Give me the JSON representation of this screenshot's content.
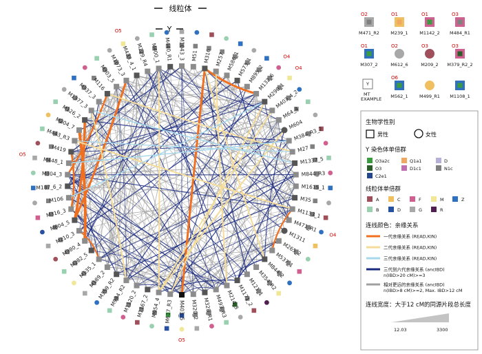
{
  "titles": {
    "mito": "线粒体",
    "y": "Y"
  },
  "colors": {
    "Y": {
      "O3a2c": "#3a9c3f",
      "Q1a1": "#f0a860",
      "D": "#b8b0d8",
      "O3": "#2a5d2a",
      "D1c1": "#c070b0",
      "N1c": "#808080",
      "C2e1": "#24468c"
    },
    "mt": {
      "A": "#a0505a",
      "C": "#f0c060",
      "F": "#d06090",
      "M": "#f0e898",
      "Z": "#3070c0",
      "B": "#98d0b0",
      "D": "#2850a0",
      "G": "#a8a8a8",
      "R": "#502050"
    },
    "edges": {
      "first": "#f07020",
      "second": "#f5dc98",
      "third": "#a8d8ec",
      "far": "#1a2a80",
      "other": "#a0a0a0"
    }
  },
  "nodes": [
    {
      "label": "M403_5",
      "y": "C2e1",
      "mt": "M",
      "sex": "M",
      "ann": "O5"
    },
    {
      "label": "M617_R3",
      "y": "O3a2c",
      "mt": "D",
      "sex": "M"
    },
    {
      "label": "M954_4",
      "y": "N1c",
      "mt": "B",
      "sex": "M"
    },
    {
      "label": "M1167_2",
      "y": "N1c",
      "mt": "A",
      "sex": "M"
    },
    {
      "label": "M1120_2",
      "y": "N1c",
      "mt": "F",
      "sex": "M"
    },
    {
      "label": "M984_R2",
      "y": "N1c",
      "mt": "B",
      "sex": "M"
    },
    {
      "label": "M359_R2",
      "y": "N1c",
      "mt": "Z",
      "sex": "M"
    },
    {
      "label": "M189_2",
      "y": "N1c",
      "mt": "G",
      "sex": "M"
    },
    {
      "label": "M135_1",
      "y": "N1c",
      "mt": "M",
      "sex": "M"
    },
    {
      "label": "M282_5",
      "y": "N1c",
      "mt": "B",
      "sex": "M"
    },
    {
      "label": "M380_4",
      "y": "N1c",
      "mt": "A",
      "sex": "M"
    },
    {
      "label": "M210_3",
      "y": "N1c",
      "mt": "G",
      "sex": "M"
    },
    {
      "label": "M604_5",
      "y": "N1c",
      "mt": "D",
      "sex": "M"
    },
    {
      "label": "M316_3",
      "y": "N1c",
      "mt": "F",
      "sex": "M"
    },
    {
      "label": "M106",
      "y": "N1c",
      "mt": "G",
      "sex": "M"
    },
    {
      "label": "M187_6_2",
      "y": "N1c",
      "mt": "Z",
      "sex": "M"
    },
    {
      "label": "M304_3",
      "y": "N1c",
      "mt": "B",
      "sex": "M"
    },
    {
      "label": "M448_1",
      "y": "N1c",
      "mt": "G",
      "sex": "M",
      "ann": "O5"
    },
    {
      "label": "M419",
      "y": "N1c",
      "mt": "A",
      "sex": "M"
    },
    {
      "label": "M443_R3",
      "y": "N1c",
      "mt": "B",
      "sex": "M"
    },
    {
      "label": "M204_7",
      "y": "N1c",
      "mt": "C",
      "sex": "M"
    },
    {
      "label": "M126_2",
      "y": "N1c",
      "mt": "B",
      "sex": "M"
    },
    {
      "label": "M1377_3",
      "y": "N1c",
      "mt": "G",
      "sex": "M"
    },
    {
      "label": "M337_3",
      "y": "N1c",
      "mt": "Z",
      "sex": "M"
    },
    {
      "label": "M116",
      "y": "N1c",
      "mt": "F",
      "sex": "M"
    },
    {
      "label": "M303_5",
      "y": "N1c",
      "mt": "B",
      "sex": "M"
    },
    {
      "label": "M1073_3",
      "y": "N1c",
      "mt": "G",
      "sex": "M"
    },
    {
      "label": "M433_4_1",
      "y": "N1c",
      "mt": "M",
      "sex": "M",
      "ann": "O5"
    },
    {
      "label": "M229_R4",
      "y": "N1c",
      "mt": "G",
      "sex": "M"
    },
    {
      "label": "M400_1",
      "y": "N1c",
      "mt": "B",
      "sex": "M"
    },
    {
      "label": "M440_R1",
      "y": "N1c",
      "mt": "Z",
      "sex": "M"
    },
    {
      "label": "M1043_3",
      "y": "N1c",
      "mt": "G",
      "sex": "M"
    },
    {
      "label": "M51",
      "y": "N1c",
      "mt": "Z",
      "sex": "M"
    },
    {
      "label": "M316",
      "y": "N1c",
      "mt": "A",
      "sex": "M"
    },
    {
      "label": "M257",
      "y": "N1c",
      "mt": "B",
      "sex": "M"
    },
    {
      "label": "M586_1",
      "y": "N1c",
      "mt": "Z",
      "sex": "M"
    },
    {
      "label": "M573_1",
      "y": "N1c",
      "mt": "G",
      "sex": "M"
    },
    {
      "label": "M895_2",
      "y": "N1c",
      "mt": "Z",
      "sex": "M"
    },
    {
      "label": "M132_6",
      "y": "N1c",
      "mt": "F",
      "sex": "M",
      "ann": "O4"
    },
    {
      "label": "M290_1",
      "y": "N1c",
      "mt": "M",
      "sex": "M",
      "ann": "O4"
    },
    {
      "label": "M403_4_2",
      "y": "N1c",
      "mt": "Z",
      "sex": "M"
    },
    {
      "label": "M64_4",
      "y": "N1c",
      "mt": "B",
      "sex": "M"
    },
    {
      "label": "M604",
      "y": "N1c",
      "mt": "G",
      "sex": "F"
    },
    {
      "label": "M384_R3_2",
      "y": "N1c",
      "mt": "A",
      "sex": "M"
    },
    {
      "label": "M27",
      "y": "N1c",
      "mt": "F",
      "sex": "M"
    },
    {
      "label": "M1337_5",
      "y": "N1c",
      "mt": "B",
      "sex": "M"
    },
    {
      "label": "M844_R3",
      "y": "N1c",
      "mt": "F",
      "sex": "M"
    },
    {
      "label": "M1615_1",
      "y": "N1c",
      "mt": "Z",
      "sex": "M"
    },
    {
      "label": "M35",
      "y": "N1c",
      "mt": "G",
      "sex": "M"
    },
    {
      "label": "M1133_1",
      "y": "N1c",
      "mt": "A",
      "sex": "M"
    },
    {
      "label": "M471_R1",
      "y": "N1c",
      "mt": "Z",
      "sex": "M",
      "ann": "O4"
    },
    {
      "label": "M1311",
      "y": "N1c",
      "mt": "C",
      "sex": "F"
    },
    {
      "label": "M265_2",
      "y": "N1c",
      "mt": "B",
      "sex": "M"
    },
    {
      "label": "M537_1",
      "y": "N1c",
      "mt": "F",
      "sex": "M"
    },
    {
      "label": "M844_2",
      "y": "N1c",
      "mt": "Z",
      "sex": "M"
    },
    {
      "label": "M354_R2",
      "y": "N1c",
      "mt": "M",
      "sex": "M"
    },
    {
      "label": "M121_1",
      "y": "N1c",
      "mt": "R",
      "sex": "M"
    },
    {
      "label": "M1171_2",
      "y": "N1c",
      "mt": "A",
      "sex": "M"
    },
    {
      "label": "M214_3",
      "y": "O3",
      "mt": "G",
      "sex": "M"
    },
    {
      "label": "M493_R3",
      "y": "N1c",
      "mt": "B",
      "sex": "M"
    },
    {
      "label": "M328_R1",
      "y": "N1c",
      "mt": "F",
      "sex": "M"
    },
    {
      "label": "M320_2",
      "y": "N1c",
      "mt": "G",
      "sex": "M"
    }
  ],
  "edges": [
    {
      "a": 0,
      "b": 33,
      "type": "first",
      "w": 3
    },
    {
      "a": 21,
      "b": 12,
      "type": "first",
      "w": 3.5
    },
    {
      "a": 26,
      "b": 12,
      "type": "first",
      "w": 3
    },
    {
      "a": 24,
      "b": 16,
      "type": "first",
      "w": 2.5
    },
    {
      "a": 20,
      "b": 10,
      "type": "first",
      "w": 4
    },
    {
      "a": 38,
      "b": 33,
      "type": "first",
      "w": 3
    },
    {
      "a": 49,
      "b": 53,
      "type": "first",
      "w": 2.2
    },
    {
      "a": 18,
      "b": 13,
      "type": "first",
      "w": 2.5
    },
    {
      "a": 11,
      "b": 8,
      "type": "first",
      "w": 2
    },
    {
      "a": 54,
      "b": 33,
      "type": "second",
      "w": 2
    },
    {
      "a": 42,
      "b": 2,
      "type": "second",
      "w": 2
    },
    {
      "a": 58,
      "b": 34,
      "type": "second",
      "w": 2
    },
    {
      "a": 49,
      "b": 19,
      "type": "second",
      "w": 2
    },
    {
      "a": 29,
      "b": 2,
      "type": "second",
      "w": 2
    },
    {
      "a": 22,
      "b": 5,
      "type": "second",
      "w": 2
    },
    {
      "a": 1,
      "b": 39,
      "type": "second",
      "w": 2
    },
    {
      "a": 24,
      "b": 44,
      "type": "second",
      "w": 1.8
    },
    {
      "a": 40,
      "b": 2,
      "type": "second",
      "w": 1.8
    },
    {
      "a": 43,
      "b": 17,
      "type": "third",
      "w": 1.5
    },
    {
      "a": 45,
      "b": 22,
      "type": "third",
      "w": 1.5
    },
    {
      "a": 39,
      "b": 14,
      "type": "third",
      "w": 1.5
    },
    {
      "a": 44,
      "b": 19,
      "type": "third",
      "w": 1.2
    }
  ],
  "annotations": {
    "o1": "O1",
    "o2": "O2",
    "o3": "O3",
    "o4": "O4",
    "o5": "O5",
    "o6": "O6"
  },
  "examples": [
    {
      "label": "M471_R2",
      "mt": "G",
      "y": "N1c",
      "sex": "M",
      "ann": "O2"
    },
    {
      "label": "M239_1",
      "mt": "C",
      "y": "Q1a1",
      "sex": "M",
      "ann": "O1"
    },
    {
      "label": "M1142_2",
      "mt": "F",
      "y": "O3a2c",
      "sex": "M",
      "ann": "O1"
    },
    {
      "label": "M484_R1",
      "mt": "F",
      "y": "N1c",
      "sex": "M",
      "ann": "O3"
    },
    {
      "label": "M307_2",
      "mt": "Z",
      "y": "O3a2c",
      "sex": "M",
      "ann": "O1"
    },
    {
      "label": "M612_6",
      "mt": "G",
      "sex": "F",
      "ann": "O2"
    },
    {
      "label": "M209_2",
      "mt": "A",
      "sex": "F",
      "ann": "O3"
    },
    {
      "label": "M379_R2_2",
      "mt": "F",
      "y": "O3",
      "sex": "M",
      "ann": "O3"
    },
    {
      "label": "MT EXAMPLE",
      "mt": "",
      "y": "",
      "sex": "M",
      "ann": ""
    },
    {
      "label": "M562_1",
      "mt": "Z",
      "y": "O3a2c",
      "sex": "M",
      "ann": "O6"
    },
    {
      "label": "M499_R1",
      "mt": "C",
      "sex": "F",
      "ann": ""
    },
    {
      "label": "M1108_1",
      "mt": "Z",
      "y": "O3a2c",
      "sex": "M",
      "ann": ""
    }
  ],
  "legend": {
    "sex_title": "生物学性别",
    "male": "男性",
    "female": "女性",
    "y_title": "Y 染色体单倍群",
    "y_items": [
      [
        "O3a2c",
        "O3a2c"
      ],
      [
        "Q1a1",
        "Q1a1"
      ],
      [
        "D",
        "D"
      ],
      [
        "O3",
        "O3"
      ],
      [
        "D1c1",
        "D1c1"
      ],
      [
        "N1c",
        "N1c"
      ],
      [
        "C2e1",
        "C2e1"
      ]
    ],
    "mt_title": "线粒体单倍群",
    "mt_items": [
      "A",
      "C",
      "F",
      "M",
      "Z",
      "B",
      "D",
      "G",
      "R"
    ],
    "edge_title": "连线颜色：亲缘关系",
    "edge_items": [
      {
        "type": "first",
        "text": "一代亲缘关系 (READ,KIN)"
      },
      {
        "type": "second",
        "text": "二代亲缘关系 (READ,KIN)"
      },
      {
        "type": "third",
        "text": "三代亲缘关系 (READ,KIN)"
      },
      {
        "type": "far",
        "text": "三代到六代亲缘关系 (ancIBD)",
        "sub": "n(IBD>20 cM)>=3"
      },
      {
        "type": "other",
        "text": "相对更远的亲缘关系 (ancIBD)",
        "sub": "n(IBD>8 cM)>=2, Max. IBD>12 cM"
      }
    ],
    "width_title": "连线宽度：大于12 cM的同源片段总长度",
    "width_min": "12.03",
    "width_max": "3300"
  }
}
